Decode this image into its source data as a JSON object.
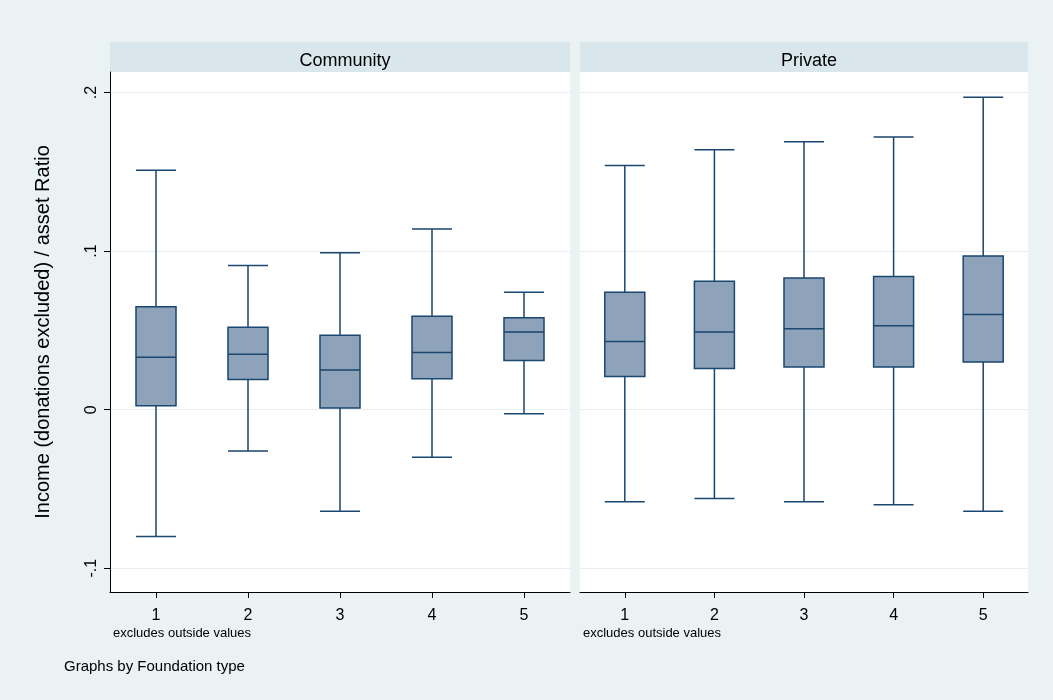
{
  "chart_data": [
    {
      "type": "box",
      "title": "Community",
      "ylabel": "Income (donations excluded) / asset Ratio",
      "categories": [
        "1",
        "2",
        "3",
        "4",
        "5"
      ],
      "color": "#8ea3ba",
      "grid": "y",
      "ylim": [
        -0.115,
        0.213
      ],
      "yticks": [
        {
          "value": -0.1,
          "label": "-.1"
        },
        {
          "value": 0,
          "label": "0"
        },
        {
          "value": 0.1,
          "label": ".1"
        },
        {
          "value": 0.2,
          "label": ".2"
        }
      ],
      "boxes": [
        {
          "low": -0.08,
          "q1": 0.0025,
          "median": 0.033,
          "q3": 0.065,
          "high": 0.151
        },
        {
          "low": -0.026,
          "q1": 0.019,
          "median": 0.035,
          "q3": 0.052,
          "high": 0.091
        },
        {
          "low": -0.064,
          "q1": 0.001,
          "median": 0.025,
          "q3": 0.047,
          "high": 0.099
        },
        {
          "low": -0.03,
          "q1": 0.0195,
          "median": 0.036,
          "q3": 0.059,
          "high": 0.114
        },
        {
          "low": -0.0025,
          "q1": 0.031,
          "median": 0.049,
          "q3": 0.058,
          "high": 0.074
        }
      ],
      "annotations": [
        "excludes outside values",
        "Graphs by Foundation type"
      ]
    },
    {
      "type": "box",
      "title": "Private",
      "categories": [
        "1",
        "2",
        "3",
        "4",
        "5"
      ],
      "color": "#8ea3ba",
      "grid": "y",
      "tick_labels": "x",
      "ylim": [
        -0.115,
        0.213
      ],
      "yticks": [
        {
          "value": -0.1,
          "label": null
        },
        {
          "value": 0,
          "label": null
        },
        {
          "value": 0.1,
          "label": null
        },
        {
          "value": 0.2,
          "label": null
        }
      ],
      "boxes": [
        {
          "low": -0.058,
          "q1": 0.021,
          "median": 0.043,
          "q3": 0.074,
          "high": 0.154
        },
        {
          "low": -0.056,
          "q1": 0.026,
          "median": 0.049,
          "q3": 0.081,
          "high": 0.164
        },
        {
          "low": -0.058,
          "q1": 0.027,
          "median": 0.051,
          "q3": 0.083,
          "high": 0.169
        },
        {
          "low": -0.06,
          "q1": 0.027,
          "median": 0.053,
          "q3": 0.084,
          "high": 0.172
        },
        {
          "low": -0.064,
          "q1": 0.03,
          "median": 0.06,
          "q3": 0.097,
          "high": 0.197
        }
      ],
      "annotations": [
        "excludes outside values"
      ]
    }
  ]
}
